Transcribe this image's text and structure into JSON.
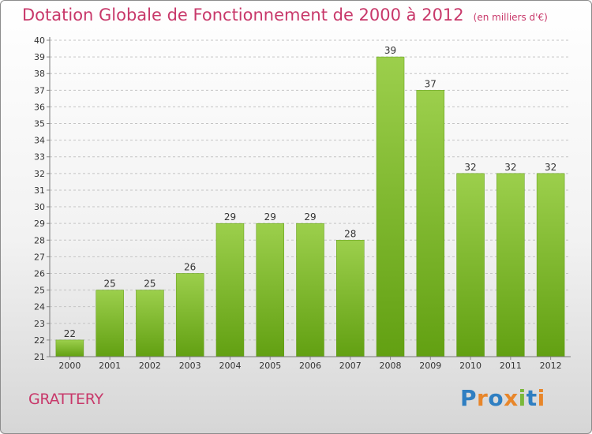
{
  "chart_data": {
    "type": "bar",
    "title": "Dotation Globale de Fonctionnement de 2000 à 2012",
    "subtitle": "(en milliers d'€)",
    "categories": [
      "2000",
      "2001",
      "2002",
      "2003",
      "2004",
      "2005",
      "2006",
      "2007",
      "2008",
      "2009",
      "2010",
      "2011",
      "2012"
    ],
    "values": [
      22,
      25,
      25,
      26,
      29,
      29,
      29,
      28,
      39,
      37,
      32,
      32,
      32
    ],
    "ylim": [
      21,
      40
    ],
    "ytick_step": 1,
    "grid": "horizontal-dashed",
    "bar_color_top": "#9ccf4c",
    "bar_color_bottom": "#62a012"
  },
  "commune_name": "GRATTERY",
  "logo": {
    "letters": [
      "P",
      "r",
      "o",
      "x",
      "i",
      "t",
      "i"
    ],
    "colors": [
      "#2f7fc2",
      "#e8862a",
      "#2f7fc2",
      "#e8862a",
      "#7ab83a",
      "#2f7fc2",
      "#e8862a"
    ]
  }
}
